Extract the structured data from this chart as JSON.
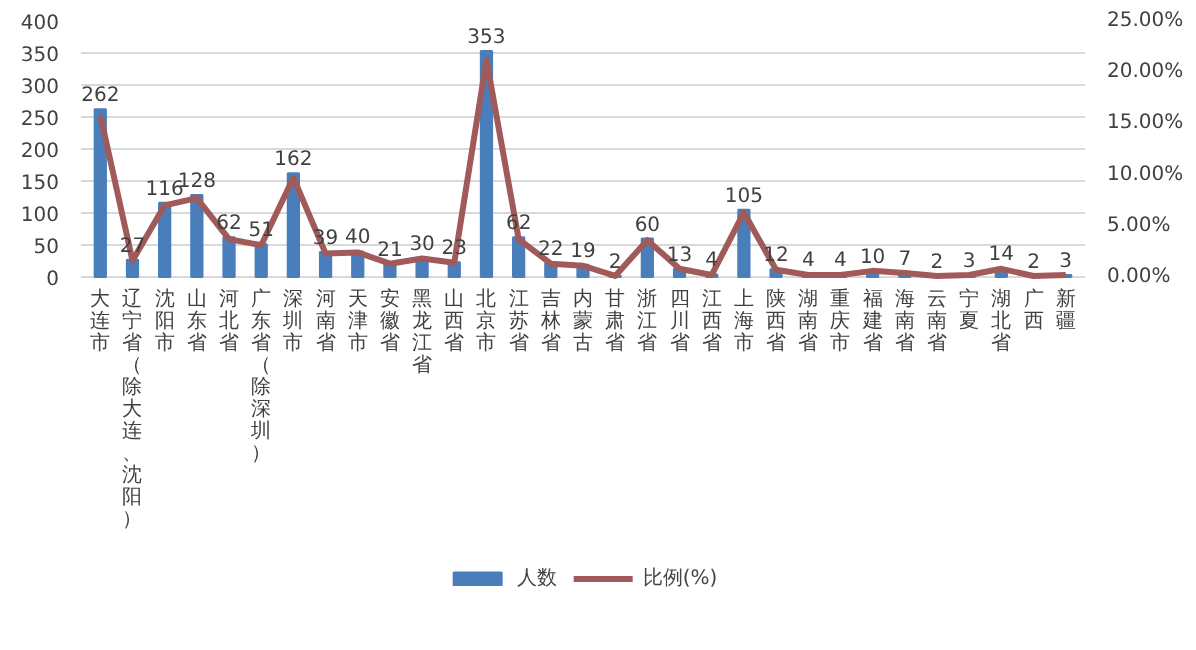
{
  "chart_data": {
    "type": "bar",
    "categories": [
      "大连市",
      "辽宁省（除大连、沈阳）",
      "沈阳市",
      "山东省",
      "河北省",
      "广东省（除深圳）",
      "深圳市",
      "河南省",
      "天津市",
      "安徽省",
      "黑龙江省",
      "山西省",
      "北京市",
      "江苏省",
      "吉林省",
      "内蒙古",
      "甘肃省",
      "浙江省",
      "四川省",
      "江西省",
      "上海市",
      "陕西省",
      "湖南省",
      "重庆市",
      "福建省",
      "海南省",
      "云南省",
      "宁夏",
      "湖北省",
      "广西",
      "新疆"
    ],
    "series": [
      {
        "name": "人数",
        "color": "#4a7ebb",
        "values": [
          262,
          27,
          116,
          128,
          62,
          51,
          162,
          39,
          40,
          21,
          30,
          23,
          353,
          62,
          22,
          19,
          2,
          60,
          13,
          4,
          105,
          12,
          4,
          4,
          10,
          7,
          2,
          3,
          14,
          2,
          3
        ],
        "value_labels": [
          "262",
          "27",
          "116",
          "128",
          "62",
          "51",
          "162",
          "39",
          "40",
          "21",
          "30",
          "23",
          "353",
          "62",
          "22",
          "19",
          "2",
          "60",
          "13",
          "4",
          "105",
          "12",
          "4",
          "4",
          "10",
          "7",
          "2",
          "3",
          "14",
          "2",
          "3"
        ]
      },
      {
        "name": "比例(%)",
        "type": "line",
        "axis": "y2",
        "color": "#a05a5a",
        "values": [
          15.8,
          1.6,
          7.0,
          7.7,
          3.7,
          3.1,
          9.7,
          2.3,
          2.4,
          1.3,
          1.8,
          1.4,
          21.2,
          3.7,
          1.3,
          1.1,
          0.1,
          3.6,
          0.8,
          0.2,
          6.3,
          0.7,
          0.2,
          0.2,
          0.6,
          0.4,
          0.1,
          0.2,
          0.8,
          0.1,
          0.2
        ]
      }
    ],
    "ylim": [
      0,
      400
    ],
    "yticks": [
      0,
      50,
      100,
      150,
      200,
      250,
      300,
      350,
      400
    ],
    "y2lim": [
      0,
      25
    ],
    "y2ticks": [
      {
        "value": 0,
        "label": "0.00%"
      },
      {
        "value": 5,
        "label": "5.00%"
      },
      {
        "value": 10,
        "label": "10.00%"
      },
      {
        "value": 15,
        "label": "15.00%"
      },
      {
        "value": 20,
        "label": "20.00%"
      },
      {
        "value": 25,
        "label": "25.00%"
      }
    ],
    "grid": "y",
    "legend": "bottom"
  }
}
